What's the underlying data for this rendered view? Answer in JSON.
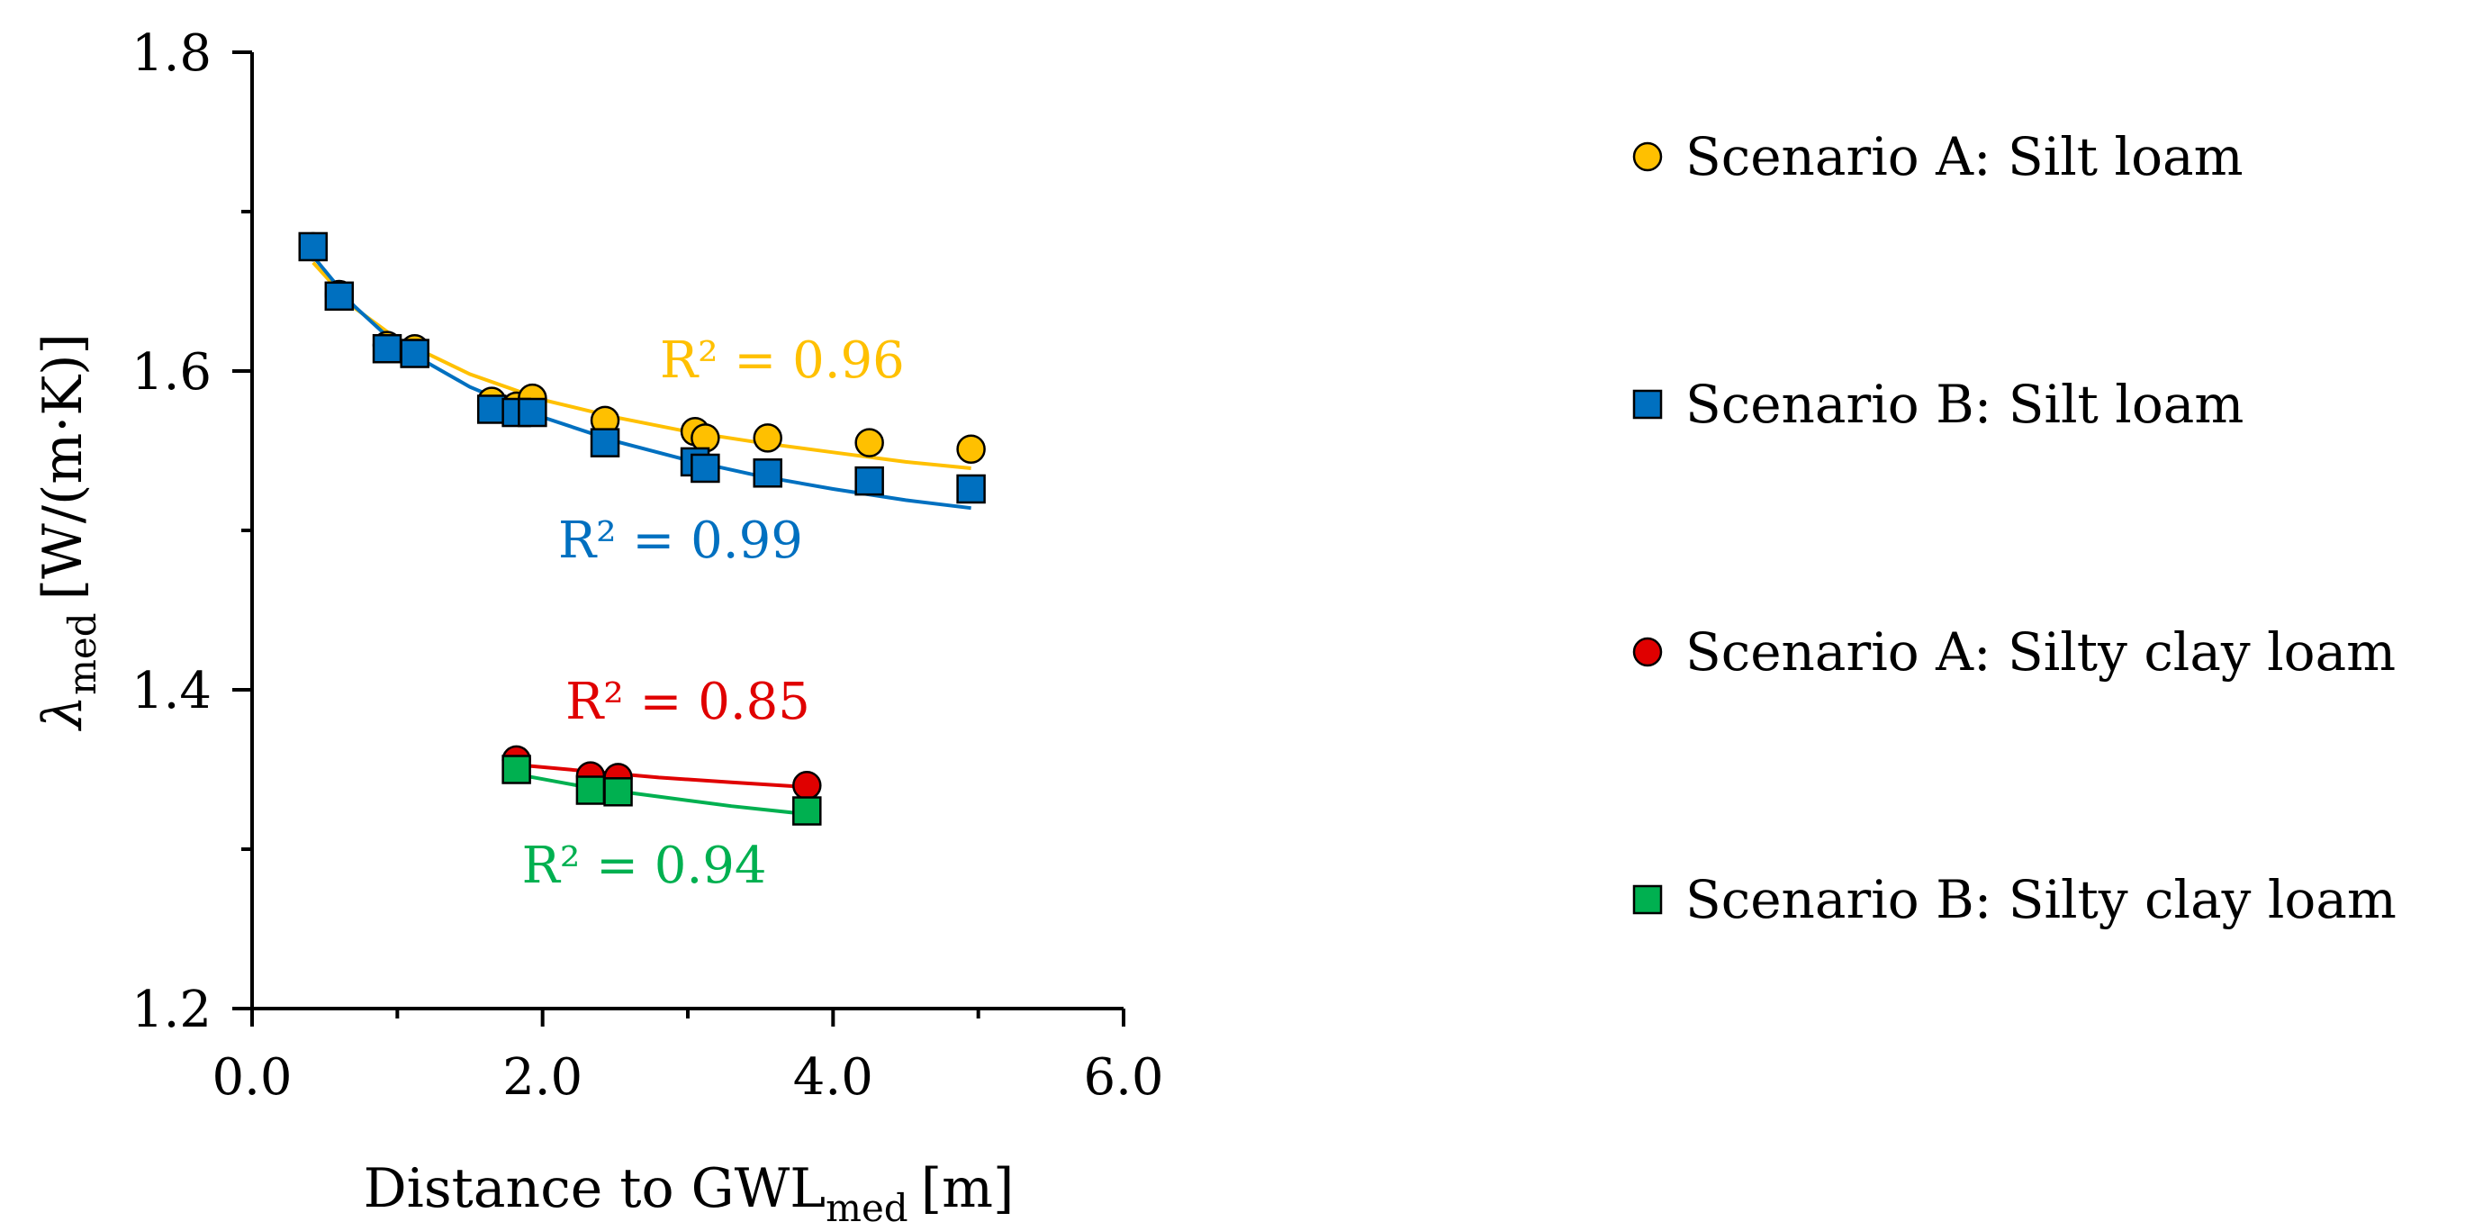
{
  "chart_data": {
    "type": "scatter",
    "xlabel": "Distance to GWL",
    "xlabel_sub": "med",
    "xlabel_unit": "[m]",
    "ylabel": "λ",
    "ylabel_sub": "med",
    "ylabel_unit": "[W/(m·K)]",
    "xlim": [
      0.0,
      6.0
    ],
    "ylim": [
      1.2,
      1.8
    ],
    "xticks": [
      "0.0",
      "2.0",
      "4.0",
      "6.0"
    ],
    "yticks": [
      "1.2",
      "1.4",
      "1.6",
      "1.8"
    ],
    "grid": false,
    "legend_position": "right",
    "series": [
      {
        "name": "Scenario A: Silt loam",
        "marker": "circle",
        "color": "#FFC000",
        "x": [
          0.42,
          0.6,
          0.93,
          1.12,
          1.65,
          1.82,
          1.93,
          2.43,
          3.05,
          3.12,
          3.55,
          4.25,
          4.95
        ],
        "y": [
          1.678,
          1.648,
          1.616,
          1.614,
          1.581,
          1.578,
          1.583,
          1.569,
          1.562,
          1.558,
          1.558,
          1.555,
          1.551
        ],
        "fit_label": "R² = 0.96",
        "fit": [
          [
            0.42,
            1.668
          ],
          [
            0.7,
            1.64
          ],
          [
            1.0,
            1.62
          ],
          [
            1.5,
            1.598
          ],
          [
            2.0,
            1.582
          ],
          [
            2.5,
            1.571
          ],
          [
            3.0,
            1.562
          ],
          [
            3.5,
            1.555
          ],
          [
            4.0,
            1.549
          ],
          [
            4.5,
            1.543
          ],
          [
            4.95,
            1.539
          ]
        ]
      },
      {
        "name": "Scenario B: Silt loam",
        "marker": "square",
        "color": "#0070C0",
        "x": [
          0.42,
          0.6,
          0.93,
          1.12,
          1.65,
          1.82,
          1.93,
          2.43,
          3.05,
          3.12,
          3.55,
          4.25,
          4.95
        ],
        "y": [
          1.678,
          1.647,
          1.614,
          1.611,
          1.576,
          1.574,
          1.574,
          1.555,
          1.543,
          1.539,
          1.536,
          1.531,
          1.526
        ],
        "fit_label": "R² = 0.99",
        "fit": [
          [
            0.42,
            1.672
          ],
          [
            0.7,
            1.641
          ],
          [
            1.0,
            1.616
          ],
          [
            1.5,
            1.59
          ],
          [
            2.0,
            1.571
          ],
          [
            2.5,
            1.556
          ],
          [
            3.0,
            1.544
          ],
          [
            3.5,
            1.534
          ],
          [
            4.0,
            1.526
          ],
          [
            4.5,
            1.519
          ],
          [
            4.95,
            1.514
          ]
        ]
      },
      {
        "name": "Scenario A: Silty clay loam",
        "marker": "circle",
        "color": "#E00000",
        "x": [
          1.82,
          2.33,
          2.52,
          3.82
        ],
        "y": [
          1.356,
          1.346,
          1.345,
          1.34
        ],
        "fit_label": "R² = 0.85",
        "fit": [
          [
            1.82,
            1.353
          ],
          [
            2.3,
            1.349
          ],
          [
            2.8,
            1.345
          ],
          [
            3.3,
            1.342
          ],
          [
            3.82,
            1.339
          ]
        ]
      },
      {
        "name": "Scenario B: Silty clay loam",
        "marker": "square",
        "color": "#00B050",
        "x": [
          1.82,
          2.33,
          2.52,
          3.82
        ],
        "y": [
          1.35,
          1.337,
          1.336,
          1.324
        ],
        "fit_label": "R² = 0.94",
        "fit": [
          [
            1.82,
            1.347
          ],
          [
            2.3,
            1.339
          ],
          [
            2.8,
            1.333
          ],
          [
            3.3,
            1.327
          ],
          [
            3.82,
            1.322
          ]
        ]
      }
    ]
  }
}
